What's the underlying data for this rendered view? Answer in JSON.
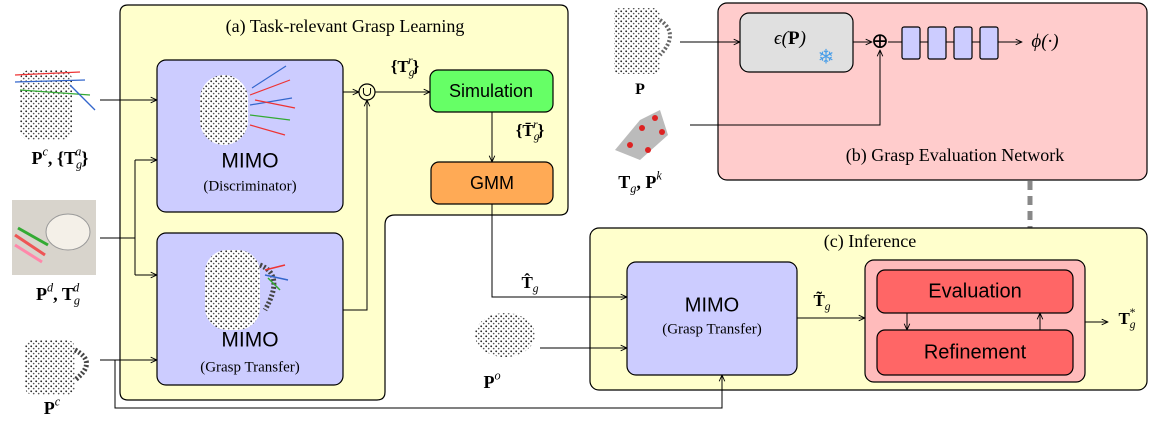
{
  "panel_a": {
    "title": "(a) Task-relevant Grasp Learning",
    "mimo_discriminator": {
      "name": "MIMO",
      "role": "(Discriminator)"
    },
    "mimo_transfer": {
      "name": "MIMO",
      "role": "(Grasp Transfer)"
    },
    "union": "∪",
    "simulation": "Simulation",
    "gmm": "GMM",
    "edge_union": [
      {
        "t": "{T"
      },
      {
        "sub": "g"
      },
      {
        "sup": "r"
      },
      {
        "t": "}"
      }
    ],
    "edge_simulated": [
      {
        "t": "{T̄"
      },
      {
        "sub": "g"
      },
      {
        "sup": "r"
      },
      {
        "t": "}"
      }
    ]
  },
  "inputs": {
    "object_grasps": [
      {
        "t": "P"
      },
      {
        "sup": "c"
      },
      {
        "t": ", {T"
      },
      {
        "sub": "g"
      },
      {
        "sup": "a"
      },
      {
        "t": "}"
      }
    ],
    "demonstration": [
      {
        "t": "P"
      },
      {
        "sup": "d"
      },
      {
        "t": ", T"
      },
      {
        "sub": "g"
      },
      {
        "sup": "d"
      }
    ],
    "object": [
      {
        "t": "P"
      },
      {
        "sup": "c"
      }
    ]
  },
  "panel_b": {
    "title": "(b) Grasp Evaluation Network",
    "cloud": [
      {
        "t": "P"
      }
    ],
    "grasp_keypoints": [
      {
        "t": "T"
      },
      {
        "sub": "g"
      },
      {
        "t": ", P"
      },
      {
        "sup": "k"
      }
    ],
    "encoder": [
      {
        "i": "ϵ("
      },
      {
        "t": "P"
      },
      {
        "i": ")"
      }
    ],
    "snowflake": "❄",
    "concat": "⊕",
    "output": [
      {
        "i": "ϕ(·)"
      }
    ]
  },
  "panel_c": {
    "title": "(c) Inference",
    "mimo": {
      "name": "MIMO",
      "role": "(Grasp Transfer)"
    },
    "evaluation": "Evaluation",
    "refinement": "Refinement",
    "t_hat": [
      {
        "t": "T̂"
      },
      {
        "sub": "g"
      }
    ],
    "t_tilde": [
      {
        "t": "T̃"
      },
      {
        "sub": "g"
      }
    ],
    "t_star": [
      {
        "t": "T"
      },
      {
        "sub": "g"
      },
      {
        "sup": "*"
      }
    ],
    "observed": [
      {
        "t": "P"
      },
      {
        "sup": "o"
      }
    ]
  }
}
